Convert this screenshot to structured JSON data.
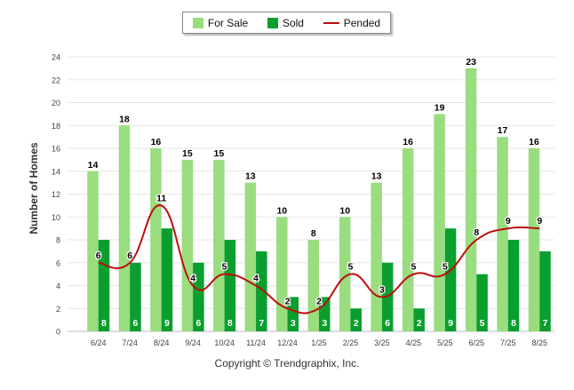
{
  "chart_data": {
    "type": "bar",
    "categories": [
      "6/24",
      "7/24",
      "8/24",
      "9/24",
      "10/24",
      "11/24",
      "12/24",
      "1/25",
      "2/25",
      "3/25",
      "4/25",
      "5/25",
      "6/25",
      "7/25",
      "8/25"
    ],
    "series": [
      {
        "name": "For Sale",
        "type": "bar",
        "color": "#99dd7f",
        "values": [
          14,
          18,
          16,
          15,
          15,
          13,
          10,
          8,
          10,
          13,
          16,
          19,
          23,
          17,
          16
        ]
      },
      {
        "name": "Sold",
        "type": "bar",
        "color": "#0a9e2f",
        "values": [
          8,
          6,
          9,
          6,
          8,
          7,
          3,
          3,
          2,
          6,
          2,
          9,
          5,
          8,
          7
        ]
      },
      {
        "name": "Pended",
        "type": "line",
        "color": "#bb0f0f",
        "values": [
          6,
          6,
          11,
          4,
          5,
          4,
          2,
          2,
          5,
          3,
          5,
          5,
          8,
          9,
          9
        ]
      }
    ],
    "ylabel": "Number of Homes",
    "xlabel": "",
    "ylim": [
      0,
      24
    ],
    "yticks": [
      0,
      2,
      4,
      6,
      8,
      10,
      12,
      14,
      16,
      18,
      20,
      22,
      24
    ],
    "grid": true,
    "legend_position": "top-center"
  },
  "footer": "Copyright © Trendgraphix, Inc."
}
